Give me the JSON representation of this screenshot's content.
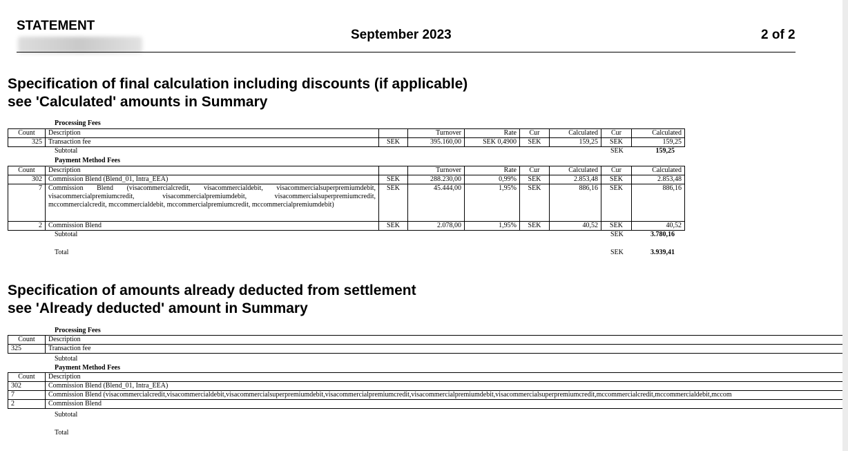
{
  "header": {
    "title": "STATEMENT",
    "month": "September 2023",
    "page": "2 of 2"
  },
  "section1": {
    "title_line1": "Specification of final calculation including discounts (if applicable)",
    "title_line2": "see 'Calculated' amounts in Summary",
    "columns": [
      "Count",
      "Description",
      "",
      "Turnover",
      "Rate",
      "Cur",
      "Calculated",
      "Cur",
      "Calculated"
    ],
    "processing": {
      "label": "Processing Fees",
      "rows": [
        [
          "325",
          "Transaction fee",
          "SEK",
          "395.160,00",
          "SEK 0,4900",
          "SEK",
          "159,25",
          "SEK",
          "159,25"
        ]
      ],
      "subtotal_label": "Subtotal",
      "subtotal_cur": "SEK",
      "subtotal_value": "159,25"
    },
    "payment": {
      "label": "Payment Method Fees",
      "rows": [
        [
          "302",
          "Commission Blend (Blend_01, Intra_EEA)",
          "SEK",
          "288.230,00",
          "0,99%",
          "SEK",
          "2.853,48",
          "SEK",
          "2.853,48"
        ],
        [
          "7",
          "Commission Blend (visacommercialcredit, visacommercialdebit, visacommercialsuperpremi­umdebit, visacommercialpremiumcredit, visacommercialpremiumdebit, visacommercialsuper­premiumcredit, mccommercialcredit, mccommercialdebit, mccommercialpremiumcredit, mccom­mercialpremiumdebit)",
          "SEK",
          "45.444,00",
          "1,95%",
          "SEK",
          "886,16",
          "SEK",
          "886,16"
        ],
        [
          "2",
          "Commission Blend",
          "SEK",
          "2.078,00",
          "1,95%",
          "SEK",
          "40,52",
          "SEK",
          "40,52"
        ]
      ],
      "subtotal_label": "Subtotal",
      "subtotal_cur": "SEK",
      "subtotal_value": "3.780,16"
    },
    "total_label": "Total",
    "total_cur": "SEK",
    "total_value": "3.939,41"
  },
  "section2": {
    "title_line1": "Specification of amounts already deducted from settlement",
    "title_line2": "see 'Already deducted' amount in Summary",
    "columns": [
      "Count",
      "Description"
    ],
    "processing": {
      "label": "Processing Fees",
      "rows": [
        [
          "325",
          "Transaction fee"
        ]
      ],
      "subtotal_label": "Subtotal"
    },
    "payment": {
      "label": "Payment Method Fees",
      "rows": [
        [
          "302",
          "Commission Blend (Blend_01, Intra_EEA)"
        ],
        [
          "7",
          "Commission Blend (visacommercialcredit,visacommercialdebit,visacommercialsuperpremiumdebit,visacommercialpremiumcredit,visacommercialpremiumdebit,visacommercialsuperpremiumcredit,mccommercialcredit,mccommercialdebit,mccom"
        ],
        [
          "2",
          "Commission Blend"
        ]
      ],
      "subtotal_label": "Subtotal"
    },
    "total_label": "Total"
  }
}
